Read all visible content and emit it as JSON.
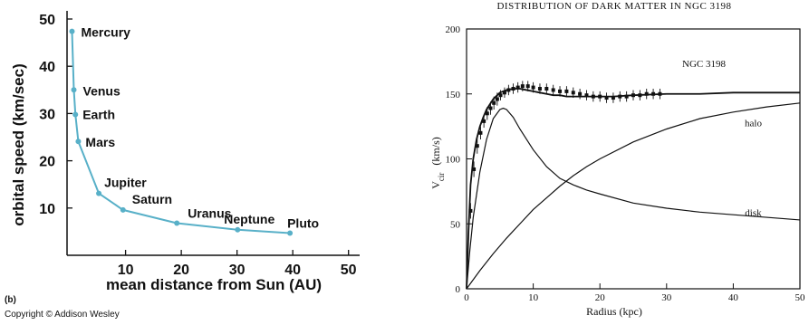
{
  "chart_data": [
    {
      "type": "line",
      "subtitle": "",
      "figure_label": "(b)",
      "copyright": "Copyright © Addison Wesley",
      "xlabel": "mean distance from Sun (AU)",
      "ylabel": "orbital speed (km/sec)",
      "xlim": [
        -0.5,
        52
      ],
      "ylim": [
        0,
        50
      ],
      "x_ticks": [
        10,
        20,
        30,
        40,
        50
      ],
      "y_ticks": [
        10,
        20,
        30,
        40,
        50
      ],
      "x_tick_labels": [
        "10",
        "20",
        "30",
        "40",
        "50"
      ],
      "y_tick_labels": [
        "10",
        "20",
        "30",
        "40",
        "50"
      ],
      "grid": false,
      "colors": {
        "curve": "#58b0c8",
        "points": "#58b0c8",
        "axes": "#111111"
      },
      "series": [
        {
          "name": "",
          "x": [
            0.39,
            0.72,
            1.0,
            1.52,
            5.2,
            9.54,
            19.2,
            30.1,
            39.5
          ],
          "y": [
            47.4,
            35.0,
            29.8,
            24.1,
            13.1,
            9.6,
            6.8,
            5.4,
            4.7
          ],
          "labels": [
            "Mercury",
            "Venus",
            "Earth",
            "Mars",
            "Jupiter",
            "Saturn",
            "Uranus",
            "Neptune",
            "Pluto"
          ]
        }
      ]
    },
    {
      "type": "line",
      "title": "DISTRIBUTION OF DARK MATTER IN NGC 3198",
      "inset_label": "NGC 3198",
      "xlabel": "Radius   (kpc)",
      "ylabel": "V_cir   (km/s)",
      "ylabel_main": "V",
      "ylabel_sub": "cir",
      "ylabel_units": "(km/s)",
      "xlim": [
        0,
        50
      ],
      "ylim": [
        0,
        200
      ],
      "x_ticks": [
        0,
        10,
        20,
        30,
        40,
        50
      ],
      "y_ticks": [
        0,
        50,
        100,
        150,
        200
      ],
      "x_tick_labels": [
        "0",
        "10",
        "20",
        "30",
        "40",
        "50"
      ],
      "y_tick_labels": [
        "0",
        "50",
        "100",
        "150",
        "200"
      ],
      "grid": false,
      "colors": {
        "curves": "#111111",
        "points": "#111111"
      },
      "annotations": [
        {
          "text": "halo",
          "x": 43,
          "y": 125
        },
        {
          "text": "disk",
          "x": 43,
          "y": 56
        }
      ],
      "series": [
        {
          "name": "",
          "x": [
            0,
            0.3,
            0.6,
            1.0,
            1.5,
            2.0,
            2.5,
            3.0,
            4.0,
            5.0,
            6.0,
            7.0,
            8.0,
            9.0,
            10.0,
            11.0,
            12.0,
            13.0,
            14.0,
            15.0,
            16.0,
            18.0,
            20.0,
            22.0,
            25.0,
            30.0,
            35.0,
            40.0,
            45.0,
            50.0
          ],
          "y": [
            0,
            45,
            80,
            100,
            115,
            125,
            132,
            138,
            146,
            151,
            153,
            154,
            154,
            153,
            152,
            151,
            150,
            149,
            149,
            148,
            148,
            148,
            148,
            148,
            149,
            150,
            150,
            151,
            151,
            151
          ]
        },
        {
          "name": "halo",
          "x": [
            0,
            2,
            4,
            6,
            8,
            10,
            12,
            14,
            16,
            18,
            20,
            25,
            30,
            35,
            40,
            45,
            50
          ],
          "y": [
            0,
            14,
            27,
            39,
            50,
            61,
            70,
            79,
            87,
            94,
            100,
            113,
            123,
            131,
            136,
            140,
            143
          ]
        },
        {
          "name": "disk",
          "x": [
            0,
            0.5,
            1,
            2,
            3,
            4,
            5,
            5.5,
            6,
            7,
            8,
            10,
            12,
            14,
            16,
            18,
            20,
            25,
            30,
            35,
            40,
            45,
            50
          ],
          "y": [
            0,
            30,
            55,
            90,
            115,
            131,
            138,
            139,
            138,
            132,
            123,
            107,
            94,
            85,
            80,
            76,
            73,
            66,
            62,
            59,
            57,
            55,
            53
          ]
        },
        {
          "name": "",
          "x": [
            0.6,
            1.1,
            1.6,
            2.1,
            2.6,
            3.1,
            3.6,
            4.1,
            4.6,
            5.1,
            5.7,
            6.3,
            7.0,
            7.7,
            8.4,
            9.2,
            10.0,
            11.0,
            12.0,
            13.0,
            14.0,
            15.0,
            16.0,
            17.0,
            18.0,
            19.0,
            20.0,
            21.0,
            22.0,
            23.0,
            24.0,
            25.0,
            26.0,
            27.0,
            28.0,
            29.0
          ],
          "y": [
            60,
            92,
            110,
            120,
            129,
            135,
            139,
            143,
            146,
            149,
            151,
            153,
            154,
            155,
            156,
            156,
            155,
            154,
            154,
            153,
            152,
            152,
            151,
            150,
            149,
            148,
            148,
            147,
            147,
            148,
            148,
            149,
            149,
            150,
            150,
            150
          ],
          "err": [
            6,
            6,
            6,
            5,
            5,
            5,
            5,
            5,
            5,
            4,
            4,
            4,
            4,
            4,
            4,
            4,
            4,
            4,
            4,
            4,
            4,
            4,
            4,
            4,
            4,
            4,
            4,
            4,
            4,
            4,
            4,
            4,
            4,
            4,
            4,
            4
          ]
        }
      ]
    }
  ]
}
